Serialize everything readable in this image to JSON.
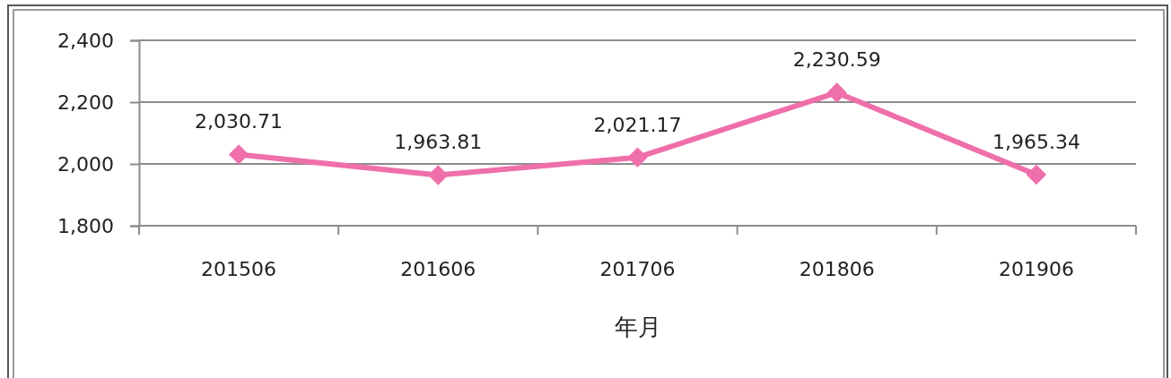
{
  "chart_data": {
    "type": "line",
    "xlabel": "年月",
    "categories": [
      "201506",
      "201606",
      "201706",
      "201806",
      "201906"
    ],
    "values": [
      2030.71,
      1963.81,
      2021.17,
      2230.59,
      1965.34
    ],
    "value_labels": [
      "2,030.71",
      "1,963.81",
      "2,021.17",
      "2,230.59",
      "1,965.34"
    ],
    "color": "#ef6fab",
    "marker": "diamond",
    "ylim": [
      1800,
      2400
    ],
    "yticks": [
      {
        "value": 1800,
        "label": "1,800"
      },
      {
        "value": 2000,
        "label": "2,000"
      },
      {
        "value": 2200,
        "label": "2,200"
      },
      {
        "value": 2400,
        "label": "2,400"
      }
    ],
    "grid": "y"
  }
}
